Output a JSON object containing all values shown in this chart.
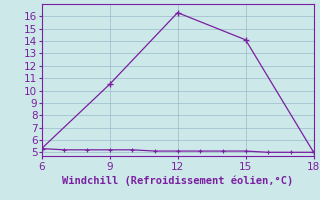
{
  "xlabel": "Windchill (Refroidissement éolien,°C)",
  "line1_x": [
    6,
    9,
    12,
    15,
    18
  ],
  "line1_y": [
    5.3,
    10.5,
    16.3,
    14.1,
    5.0
  ],
  "line2_x": [
    6,
    7,
    8,
    9,
    10,
    11,
    12,
    13,
    14,
    15,
    16,
    17,
    18
  ],
  "line2_y": [
    5.3,
    5.2,
    5.2,
    5.2,
    5.2,
    5.1,
    5.1,
    5.1,
    5.1,
    5.1,
    5.0,
    5.0,
    5.0
  ],
  "line_color": "#7b1fa2",
  "bg_color": "#cce8e8",
  "plot_bg_color": "#cce8e8",
  "xlim": [
    6,
    18
  ],
  "ylim": [
    4.7,
    17.0
  ],
  "xticks": [
    6,
    9,
    12,
    15,
    18
  ],
  "yticks": [
    5,
    6,
    7,
    8,
    9,
    10,
    11,
    12,
    13,
    14,
    15,
    16
  ],
  "xlabel_color": "#7b1fa2",
  "tick_color": "#7b1fa2",
  "grid_color": "#99bbcc",
  "xlabel_fontsize": 7.5,
  "tick_fontsize": 7.5
}
